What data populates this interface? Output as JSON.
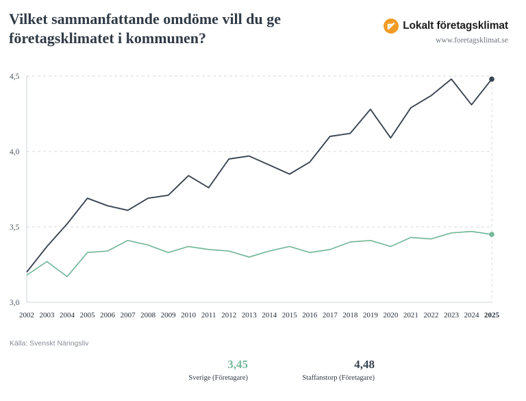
{
  "header": {
    "title": "Vilket sammanfattande omdöme vill du ge företagsklimatet i kommunen?",
    "brand_name": "Lokalt företagsklimat",
    "brand_url": "www.foretagsklimat.se",
    "brand_color": "#f29b24"
  },
  "source": "Källa: Svenskt Näringsliv",
  "stats": {
    "sverige": {
      "value": "3,45",
      "label": "Sverige (Företagare)",
      "color": "#76b89a"
    },
    "staffanstorp": {
      "value": "4,48",
      "label": "Staffanstorp (Företagare)",
      "color": "#3a4552"
    }
  },
  "chart_data": {
    "type": "line",
    "title": "",
    "xlabel": "",
    "ylabel": "",
    "ylim": [
      3.0,
      4.5
    ],
    "yticks": [
      3.0,
      3.5,
      4.0,
      4.5
    ],
    "ytick_labels": [
      "3,0",
      "3,5",
      "4,0",
      "4,5"
    ],
    "grid": true,
    "x": [
      2002,
      2003,
      2004,
      2005,
      2006,
      2007,
      2008,
      2009,
      2010,
      2011,
      2012,
      2013,
      2014,
      2015,
      2016,
      2017,
      2018,
      2019,
      2020,
      2021,
      2022,
      2023,
      2024,
      2025
    ],
    "x_labels": [
      "2002",
      "2003",
      "2004",
      "2005",
      "2006",
      "2007",
      "2008",
      "2009",
      "2010",
      "2011",
      "2012",
      "2013",
      "2014",
      "2015",
      "2016",
      "2017",
      "2018",
      "2019",
      "2020",
      "2021",
      "2022",
      "2023",
      "2024",
      "2025"
    ],
    "series": [
      {
        "name": "Staffanstorp (Företagare)",
        "color": "#3a4552",
        "values": [
          3.2,
          3.37,
          3.52,
          3.69,
          3.64,
          3.61,
          3.69,
          3.71,
          3.84,
          3.76,
          3.95,
          3.97,
          3.91,
          3.85,
          3.93,
          4.1,
          4.12,
          4.28,
          4.09,
          4.29,
          4.37,
          4.48,
          4.31,
          4.48
        ]
      },
      {
        "name": "Sverige (Företagare)",
        "color": "#76b89a",
        "values": [
          3.18,
          3.27,
          3.17,
          3.33,
          3.34,
          3.41,
          3.38,
          3.33,
          3.37,
          3.35,
          3.34,
          3.3,
          3.34,
          3.37,
          3.33,
          3.35,
          3.4,
          3.41,
          3.37,
          3.43,
          3.42,
          3.46,
          3.47,
          3.45
        ]
      }
    ]
  }
}
